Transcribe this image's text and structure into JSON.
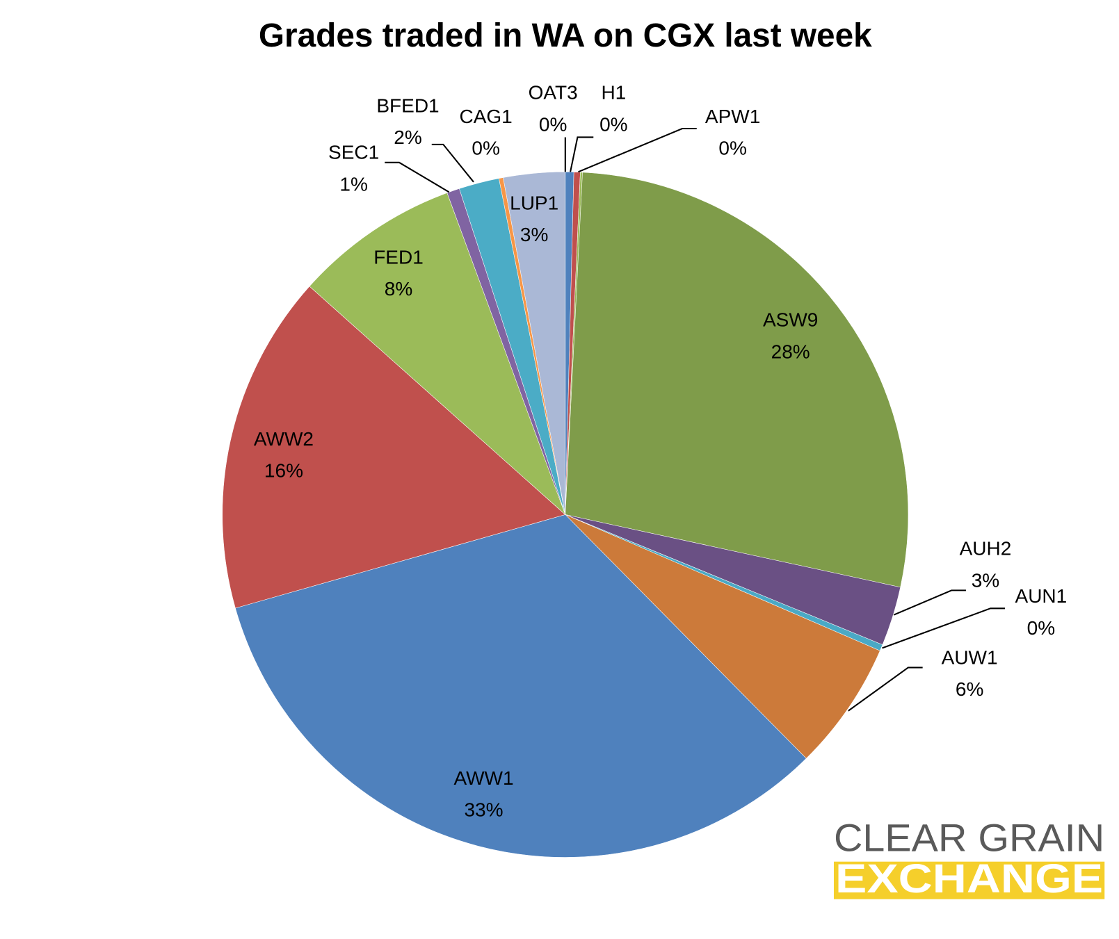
{
  "chart_data": {
    "type": "pie",
    "title": "Grades traded in WA on CGX last week",
    "categories": [
      "OAT3",
      "H1",
      "APW1",
      "ASW9",
      "AUH2",
      "AUN1",
      "AUW1",
      "AWW1",
      "AWW2",
      "FED1",
      "SEC1",
      "BFED1",
      "CAG1",
      "LUP1"
    ],
    "values": [
      0.4,
      0.3,
      0.1,
      27.6,
      2.8,
      0.3,
      6.1,
      33.0,
      16.0,
      7.8,
      0.6,
      1.9,
      0.2,
      2.9
    ],
    "value_labels": [
      "0%",
      "0%",
      "0%",
      "28%",
      "3%",
      "0%",
      "6%",
      "33%",
      "16%",
      "8%",
      "1%",
      "2%",
      "0%",
      "3%"
    ],
    "colors": [
      "#4f81bd",
      "#c0504d",
      "#9bbb59",
      "#7f9c4a",
      "#6a5084",
      "#4aa9c5",
      "#cc7a3a",
      "#4f81bd",
      "#c0504d",
      "#9bbb59",
      "#8064a2",
      "#4bacc6",
      "#f79646",
      "#aab8d6"
    ]
  },
  "logo": {
    "line1": "CLEAR GRAIN",
    "line2": "EXCHANGE"
  }
}
